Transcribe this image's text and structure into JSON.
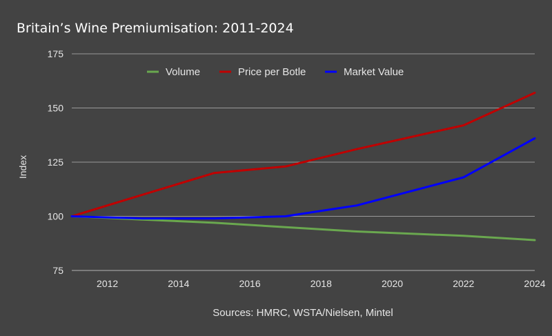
{
  "chart_data": {
    "type": "line",
    "title": "Britain’s Wine Premiumisation: 2011-2024",
    "xlabel": "",
    "ylabel": "Index",
    "xlim": [
      2011,
      2024
    ],
    "ylim": [
      75,
      175
    ],
    "x_ticks": [
      2012,
      2014,
      2016,
      2018,
      2020,
      2022,
      2024
    ],
    "y_ticks": [
      75,
      100,
      125,
      150,
      175
    ],
    "grid": true,
    "legend_position": "top",
    "series": [
      {
        "name": "Volume",
        "color": "#6aa84f",
        "x": [
          2011,
          2013,
          2015,
          2017,
          2019,
          2022,
          2024
        ],
        "values": [
          100,
          98.5,
          97,
          95,
          93,
          91,
          89
        ]
      },
      {
        "name": "Price per Botle",
        "color": "#c00000",
        "x": [
          2011,
          2013,
          2015,
          2017,
          2019,
          2022,
          2024
        ],
        "values": [
          100,
          110,
          120,
          123,
          131,
          142,
          157
        ]
      },
      {
        "name": "Market Value",
        "color": "#0000ff",
        "x": [
          2011,
          2013,
          2015,
          2017,
          2019,
          2022,
          2024
        ],
        "values": [
          100,
          99,
          99,
          100,
          105,
          118,
          136
        ]
      }
    ],
    "source": "Sources: HMRC, WSTA/Nielsen, Mintel"
  }
}
